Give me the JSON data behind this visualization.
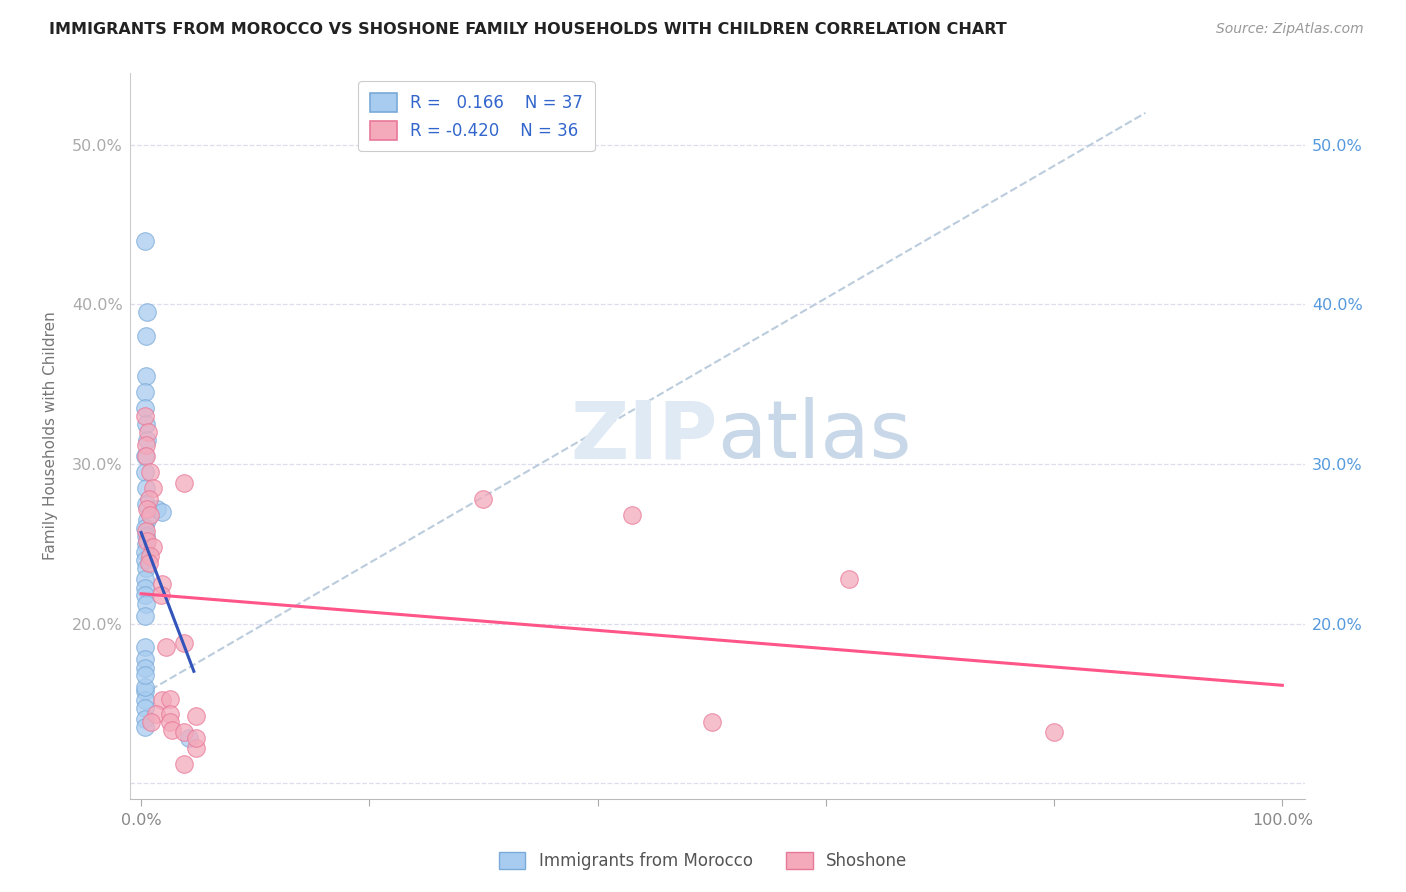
{
  "title": "IMMIGRANTS FROM MOROCCO VS SHOSHONE FAMILY HOUSEHOLDS WITH CHILDREN CORRELATION CHART",
  "source": "Source: ZipAtlas.com",
  "ylabel": "Family Households with Children",
  "xlim": [
    -0.01,
    1.02
  ],
  "ylim": [
    0.09,
    0.545
  ],
  "blue_color": "#A8CCF0",
  "pink_color": "#F4AABB",
  "blue_edge_color": "#7AAAD8",
  "pink_edge_color": "#E87898",
  "blue_line_color": "#3355BB",
  "pink_line_color": "#FF5588",
  "dashed_line_color": "#BBCCDD",
  "right_axis_color": "#5599DD",
  "grid_color": "#DDDDEE",
  "blue_r": "0.166",
  "blue_n": "37",
  "pink_r": "-0.420",
  "pink_n": "36",
  "blue_scatter_x": [
    0.003,
    0.004,
    0.004,
    0.003,
    0.003,
    0.004,
    0.005,
    0.003,
    0.003,
    0.004,
    0.004,
    0.005,
    0.003,
    0.004,
    0.004,
    0.003,
    0.003,
    0.004,
    0.005,
    0.003,
    0.003,
    0.003,
    0.004,
    0.003,
    0.014,
    0.003,
    0.003,
    0.018,
    0.003,
    0.003,
    0.003,
    0.003,
    0.003,
    0.003,
    0.042,
    0.003,
    0.003
  ],
  "blue_scatter_y": [
    0.44,
    0.38,
    0.355,
    0.345,
    0.335,
    0.325,
    0.315,
    0.305,
    0.295,
    0.285,
    0.275,
    0.265,
    0.26,
    0.255,
    0.25,
    0.245,
    0.24,
    0.235,
    0.395,
    0.228,
    0.222,
    0.218,
    0.212,
    0.205,
    0.272,
    0.185,
    0.178,
    0.27,
    0.172,
    0.158,
    0.152,
    0.147,
    0.14,
    0.135,
    0.128,
    0.16,
    0.168
  ],
  "pink_scatter_x": [
    0.003,
    0.006,
    0.004,
    0.004,
    0.008,
    0.01,
    0.007,
    0.005,
    0.008,
    0.004,
    0.005,
    0.01,
    0.008,
    0.007,
    0.018,
    0.017,
    0.022,
    0.018,
    0.013,
    0.009,
    0.025,
    0.025,
    0.025,
    0.027,
    0.43,
    0.62,
    0.5,
    0.038,
    0.038,
    0.3,
    0.8,
    0.038,
    0.048,
    0.048,
    0.038,
    0.048
  ],
  "pink_scatter_y": [
    0.33,
    0.32,
    0.312,
    0.305,
    0.295,
    0.285,
    0.278,
    0.272,
    0.268,
    0.258,
    0.252,
    0.248,
    0.242,
    0.238,
    0.225,
    0.218,
    0.185,
    0.152,
    0.143,
    0.138,
    0.153,
    0.143,
    0.138,
    0.133,
    0.268,
    0.228,
    0.138,
    0.288,
    0.188,
    0.278,
    0.132,
    0.132,
    0.142,
    0.122,
    0.112,
    0.128
  ],
  "y_ticks": [
    0.1,
    0.2,
    0.3,
    0.4,
    0.5
  ],
  "y_tick_labels_left": [
    "",
    "20.0%",
    "30.0%",
    "40.0%",
    "50.0%"
  ],
  "y_tick_labels_right": [
    "",
    "20.0%",
    "30.0%",
    "40.0%",
    "50.0%"
  ],
  "x_ticks": [
    0.0,
    0.2,
    0.4,
    0.6,
    0.8,
    1.0
  ],
  "x_tick_labels": [
    "0.0%",
    "",
    "",
    "",
    "",
    "100.0%"
  ]
}
